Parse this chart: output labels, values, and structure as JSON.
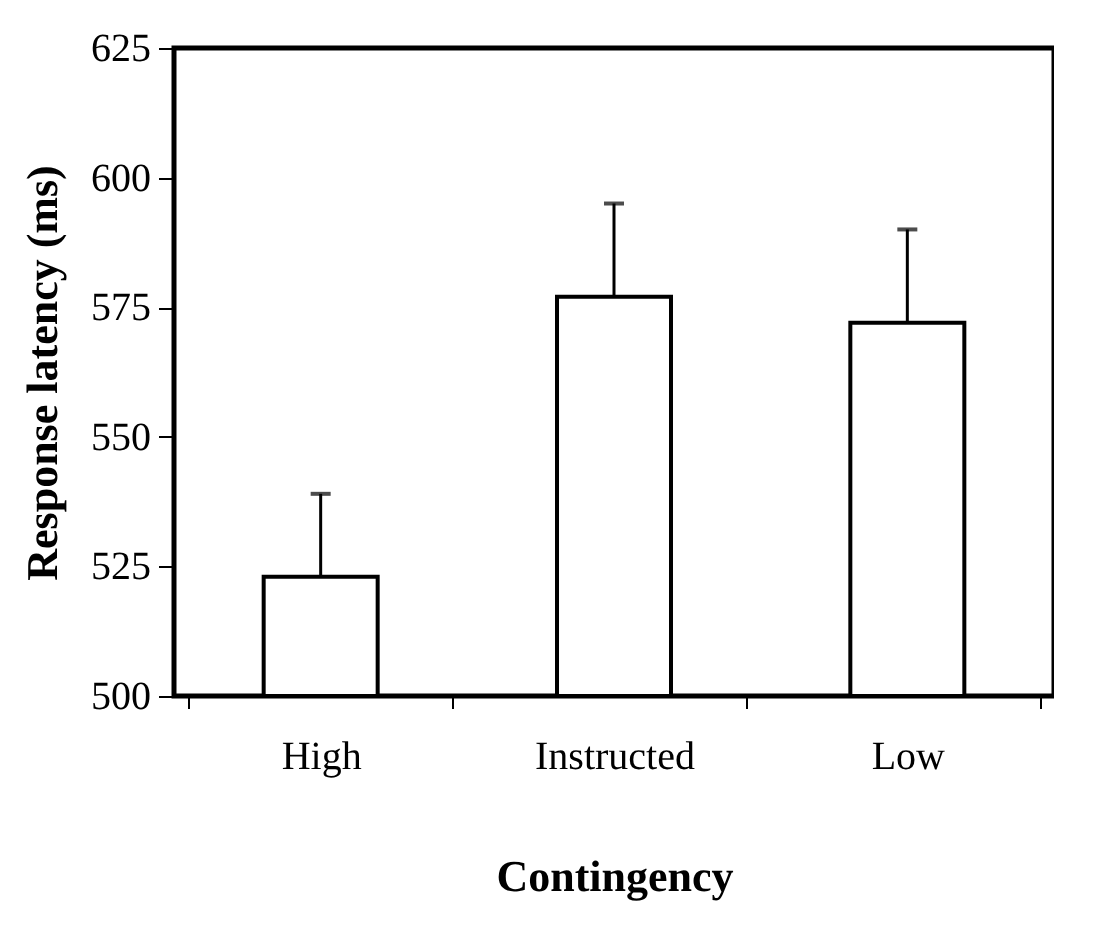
{
  "chart_data": {
    "type": "bar",
    "xlabel": "Contingency",
    "ylabel": "Response latency (ms)",
    "categories": [
      "High",
      "Instructed",
      "Low"
    ],
    "values": [
      523,
      577,
      572
    ],
    "errors": [
      [
        523,
        539
      ],
      [
        577,
        595
      ],
      [
        572,
        590
      ]
    ],
    "color": "#ffffff",
    "ylim": [
      500,
      625
    ],
    "yticks": [
      500,
      525,
      550,
      575,
      600,
      625
    ],
    "grid": false
  }
}
